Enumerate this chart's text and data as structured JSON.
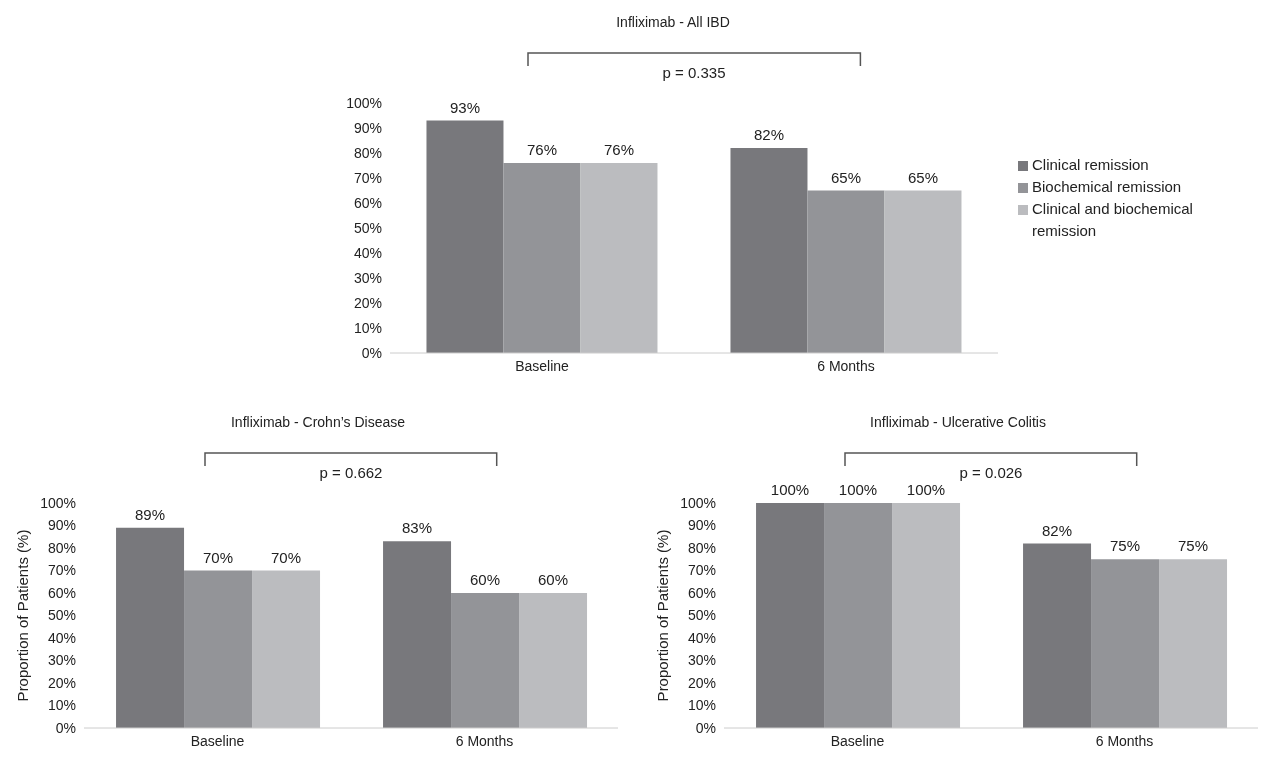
{
  "chart_data": [
    {
      "type": "bar",
      "title": "Infliximab - All IBD",
      "categories": [
        "Baseline",
        "6 Months"
      ],
      "series": [
        {
          "name": "Clinical remission",
          "color": "#78787c",
          "values": [
            93,
            82
          ],
          "value_labels": [
            "93%",
            "82%"
          ]
        },
        {
          "name": "Biochemical remission",
          "color": "#939498",
          "values": [
            76,
            65
          ],
          "value_labels": [
            "76%",
            "65%"
          ]
        },
        {
          "name": "Clinical and biochemical remission",
          "color": "#bbbcbf",
          "values": [
            76,
            65
          ],
          "value_labels": [
            "76%",
            "65%"
          ]
        }
      ],
      "ylim": [
        0,
        100
      ],
      "yticks": [
        {
          "value": 0,
          "label": "0%"
        },
        {
          "value": 10,
          "label": "10%"
        },
        {
          "value": 20,
          "label": "20%"
        },
        {
          "value": 30,
          "label": "30%"
        },
        {
          "value": 40,
          "label": "40%"
        },
        {
          "value": 50,
          "label": "50%"
        },
        {
          "value": 60,
          "label": "60%"
        },
        {
          "value": 70,
          "label": "70%"
        },
        {
          "value": 80,
          "label": "80%"
        },
        {
          "value": 90,
          "label": "90%"
        },
        {
          "value": 100,
          "label": "100%"
        }
      ],
      "grid": false,
      "legend": "right",
      "annotations": [
        "p = 0.335"
      ]
    },
    {
      "type": "bar",
      "title": "Infliximab - Crohn’s Disease",
      "ylabel": "Proportion of Patients (%)",
      "categories": [
        "Baseline",
        "6 Months"
      ],
      "series": [
        {
          "color": "#78787c",
          "values": [
            89,
            83
          ],
          "value_labels": [
            "89%",
            "83%"
          ]
        },
        {
          "color": "#939498",
          "values": [
            70,
            60
          ],
          "value_labels": [
            "70%",
            "60%"
          ]
        },
        {
          "color": "#bbbcbf",
          "values": [
            70,
            60
          ],
          "value_labels": [
            "70%",
            "60%"
          ]
        }
      ],
      "ylim": [
        0,
        100
      ],
      "yticks": [
        {
          "value": 0,
          "label": "0%"
        },
        {
          "value": 10,
          "label": "10%"
        },
        {
          "value": 20,
          "label": "20%"
        },
        {
          "value": 30,
          "label": "30%"
        },
        {
          "value": 40,
          "label": "40%"
        },
        {
          "value": 50,
          "label": "50%"
        },
        {
          "value": 60,
          "label": "60%"
        },
        {
          "value": 70,
          "label": "70%"
        },
        {
          "value": 80,
          "label": "80%"
        },
        {
          "value": 90,
          "label": "90%"
        },
        {
          "value": 100,
          "label": "100%"
        }
      ],
      "grid": false,
      "legend": false,
      "annotations": [
        "p = 0.662"
      ]
    },
    {
      "type": "bar",
      "title": "Infliximab - Ulcerative Colitis",
      "ylabel": "Proportion of Patients (%)",
      "categories": [
        "Baseline",
        "6 Months"
      ],
      "series": [
        {
          "color": "#78787c",
          "values": [
            100,
            82
          ],
          "value_labels": [
            "100%",
            "82%"
          ]
        },
        {
          "color": "#939498",
          "values": [
            100,
            75
          ],
          "value_labels": [
            "100%",
            "75%"
          ]
        },
        {
          "color": "#bbbcbf",
          "values": [
            100,
            75
          ],
          "value_labels": [
            "100%",
            "75%"
          ]
        }
      ],
      "ylim": [
        0,
        100
      ],
      "yticks": [
        {
          "value": 0,
          "label": "0%"
        },
        {
          "value": 10,
          "label": "10%"
        },
        {
          "value": 20,
          "label": "20%"
        },
        {
          "value": 30,
          "label": "30%"
        },
        {
          "value": 40,
          "label": "40%"
        },
        {
          "value": 50,
          "label": "50%"
        },
        {
          "value": 60,
          "label": "60%"
        },
        {
          "value": 70,
          "label": "70%"
        },
        {
          "value": 80,
          "label": "80%"
        },
        {
          "value": 90,
          "label": "90%"
        },
        {
          "value": 100,
          "label": "100%"
        }
      ],
      "grid": false,
      "legend": false,
      "annotations": [
        "p = 0.026"
      ]
    }
  ]
}
